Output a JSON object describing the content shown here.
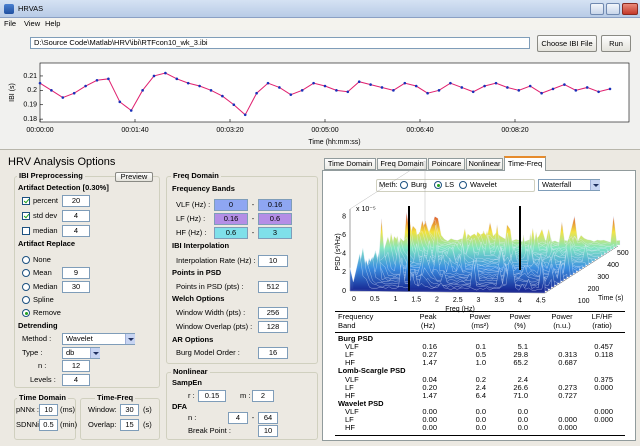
{
  "window": {
    "title": "HRVAS",
    "menu": [
      "File",
      "View",
      "Help"
    ]
  },
  "file_bar": {
    "path": "D:\\Source Code\\Matlab\\HRV\\ibi\\RTFcon10_wk_3.ibi",
    "choose_button": "Choose IBI File",
    "run_button": "Run"
  },
  "chart_data": {
    "type": "line",
    "color": "#e0206f",
    "marker_color": "#1a2fb8",
    "x": [
      0,
      12,
      24,
      36,
      48,
      60,
      72,
      84,
      96,
      108,
      120,
      132,
      144,
      156,
      168,
      180,
      192,
      204,
      216,
      228,
      240,
      252,
      264,
      276,
      288,
      300,
      312,
      324,
      336,
      348,
      360,
      372,
      384,
      396,
      408,
      420,
      432,
      444,
      456,
      468,
      480,
      492,
      504,
      516,
      528,
      540,
      552,
      564,
      576,
      588,
      600
    ],
    "values": [
      0.205,
      0.2,
      0.195,
      0.198,
      0.203,
      0.207,
      0.208,
      0.192,
      0.186,
      0.2,
      0.21,
      0.212,
      0.208,
      0.205,
      0.203,
      0.2,
      0.196,
      0.19,
      0.183,
      0.198,
      0.205,
      0.202,
      0.197,
      0.2,
      0.205,
      0.203,
      0.2,
      0.199,
      0.206,
      0.204,
      0.202,
      0.2,
      0.205,
      0.203,
      0.198,
      0.2,
      0.205,
      0.202,
      0.199,
      0.203,
      0.205,
      0.202,
      0.2,
      0.203,
      0.198,
      0.201,
      0.204,
      0.2,
      0.202,
      0.199,
      0.201
    ],
    "xlim": [
      0,
      620
    ],
    "ylim": [
      0.178,
      0.219
    ],
    "xticks": [
      {
        "value": 0,
        "label": "00:00:00"
      },
      {
        "value": 100,
        "label": "00:01:40"
      },
      {
        "value": 200,
        "label": "00:03:20"
      },
      {
        "value": 300,
        "label": "00:05:00"
      },
      {
        "value": 400,
        "label": "00:06:40"
      },
      {
        "value": 500,
        "label": "00:08:20"
      }
    ],
    "yticks": [
      0.18,
      0.19,
      0.2,
      0.21
    ],
    "xlabel": "Time (hh:mm:ss)",
    "ylabel": "IBI (s)"
  },
  "options_title": "HRV Analysis Options",
  "preprocessing": {
    "title": "IBI Preprocessing",
    "preview_button": "Preview",
    "detection_title": "Artifact Detection [0.30%]",
    "detection": [
      {
        "label": "percent",
        "checked": true,
        "value": "20"
      },
      {
        "label": "std dev",
        "checked": true,
        "value": "4"
      },
      {
        "label": "median",
        "checked": false,
        "value": "4"
      }
    ],
    "replace_title": "Artifact Replace",
    "replace": [
      {
        "label": "None",
        "selected": false
      },
      {
        "label": "Mean",
        "selected": false,
        "value": "9"
      },
      {
        "label": "Median",
        "selected": false,
        "value": "30"
      },
      {
        "label": "Spline",
        "selected": false
      },
      {
        "label": "Remove",
        "selected": true
      }
    ],
    "detrending_title": "Detrending",
    "detrending": [
      {
        "label": "Method :",
        "value": "Wavelet",
        "dropdown": true
      },
      {
        "label": "Type :",
        "value": "db",
        "dropdown": true
      },
      {
        "label": "n :",
        "value": "12"
      },
      {
        "label": "Levels :",
        "value": "4"
      }
    ]
  },
  "time_domain": {
    "title": "Time Domain",
    "fields": [
      {
        "label": "pNNx :",
        "value": "10",
        "unit": "(ms)"
      },
      {
        "label": "SDNNi :",
        "value": "0.5",
        "unit": "(min)"
      }
    ]
  },
  "time_freq": {
    "title": "Time-Freq",
    "fields": [
      {
        "label": "Window:",
        "value": "30",
        "unit": "(s)"
      },
      {
        "label": "Overlap:",
        "value": "15",
        "unit": "(s)"
      }
    ]
  },
  "freq_domain": {
    "title": "Freq Domain",
    "bands_title": "Frequency Bands",
    "bands": [
      {
        "label": "VLF (Hz) :",
        "from": "0",
        "sep": "-",
        "to": "0.16",
        "color": "#8ea6f2"
      },
      {
        "label": "LF (Hz) :",
        "from": "0.16",
        "sep": "-",
        "to": "0.6",
        "color": "#b48ee6"
      },
      {
        "label": "HF (Hz) :",
        "from": "0.6",
        "sep": "-",
        "to": "3",
        "color": "#7fe0ea"
      }
    ],
    "sections": [
      {
        "title": "IBI Interpolation",
        "fields": [
          {
            "label": "Interpolation Rate (Hz) :",
            "value": "10"
          }
        ]
      },
      {
        "title": "Points in PSD",
        "fields": [
          {
            "label": "Points in PSD (pts) :",
            "value": "512"
          }
        ]
      },
      {
        "title": "Welch Options",
        "fields": [
          {
            "label": "Window Width (pts) :",
            "value": "256"
          },
          {
            "label": "Window Overlap (pts) :",
            "value": "128"
          }
        ]
      },
      {
        "title": "AR Options",
        "fields": [
          {
            "label": "Burg Model Order :",
            "value": "16"
          }
        ]
      }
    ]
  },
  "nonlinear": {
    "title": "Nonlinear",
    "sampen_title": "SampEn",
    "r_label": "r :",
    "r": "0.15",
    "m_label": "m :",
    "m": "2",
    "dfa_title": "DFA",
    "n_label": "n :",
    "n_from": "4",
    "n_sep": "-",
    "n_to": "64",
    "break_label": "Break Point :",
    "break": "10"
  },
  "tabs": {
    "items": [
      "Time Domain",
      "Freq Domain",
      "Poincare",
      "Nonlinear",
      "Time-Freq"
    ],
    "selected": 4
  },
  "time_freq_panel": {
    "method_label": "Meth:",
    "methods": [
      "Burg",
      "LS",
      "Wavelet"
    ],
    "method_selected": 1,
    "view": "Waterfall",
    "plot": {
      "zlabel": "PSD (s²/Hz)",
      "zscale": "x 10⁻⁵",
      "zticks": [
        0,
        2,
        4,
        6,
        8
      ],
      "xlabel": "Freq (Hz)",
      "xticks": [
        0,
        0.5,
        1,
        1.5,
        2,
        2.5,
        3,
        3.5,
        4,
        4.5
      ],
      "ylabel": "Time (s)",
      "yticks": [
        100,
        200,
        300,
        400,
        500
      ]
    },
    "table": {
      "header": [
        [
          "Frequency",
          "Peak",
          "Power",
          "Power",
          "Power",
          "LF/HF"
        ],
        [
          "Band",
          "(Hz)",
          "(ms²)",
          "(%)",
          "(n.u.)",
          "(ratio)"
        ]
      ],
      "sections": [
        {
          "title": "Burg PSD",
          "rows": [
            [
              "VLF",
              "0.16",
              "0.1",
              "5.1",
              null,
              "0.457"
            ],
            [
              "LF",
              "0.27",
              "0.5",
              "29.8",
              "0.313",
              "0.118"
            ],
            [
              "HF",
              "1.47",
              "1.0",
              "65.2",
              "0.687",
              null
            ]
          ]
        },
        {
          "title": "Lomb-Scargle PSD",
          "rows": [
            [
              "VLF",
              "0.04",
              "0.2",
              "2.4",
              null,
              "0.375"
            ],
            [
              "LF",
              "0.20",
              "2.4",
              "26.6",
              "0.273",
              "0.000"
            ],
            [
              "HF",
              "1.47",
              "6.4",
              "71.0",
              "0.727",
              null
            ]
          ]
        },
        {
          "title": "Wavelet PSD",
          "rows": [
            [
              "VLF",
              "0.00",
              "0.0",
              "0.0",
              null,
              "0.000"
            ],
            [
              "LF",
              "0.00",
              "0.0",
              "0.0",
              "0.000",
              "0.000"
            ],
            [
              "HF",
              "0.00",
              "0.0",
              "0.0",
              "0.000",
              null
            ]
          ]
        }
      ]
    }
  }
}
